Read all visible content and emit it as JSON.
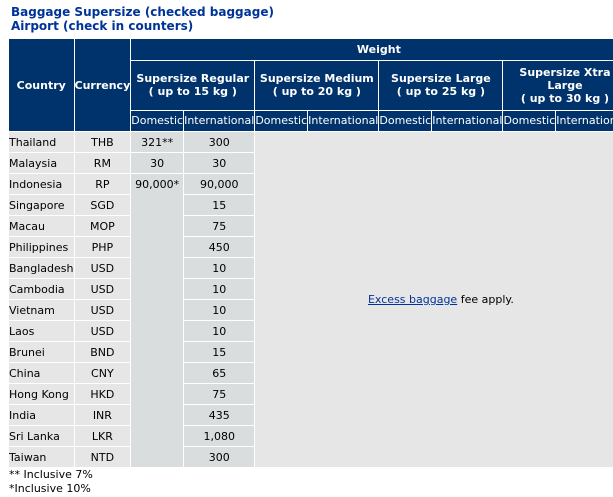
{
  "title": {
    "line1": "Baggage Supersize (checked baggage)",
    "line2": "Airport (check in counters)"
  },
  "table": {
    "weight_label": "Weight",
    "country_label": "Country",
    "currency_label": "Currency",
    "categories": [
      {
        "name": "Supersize Regular",
        "limit": "( up to 15 kg )"
      },
      {
        "name": "Supersize Medium",
        "limit": "( up to 20 kg )"
      },
      {
        "name": "Supersize Large",
        "limit": "( up to 25 kg )"
      },
      {
        "name": "Supersize Xtra Large",
        "limit": "( up to 30 kg )"
      }
    ],
    "sub_domestic": "Domestic",
    "sub_international": "International",
    "rows": [
      {
        "country": "Thailand",
        "currency": "THB",
        "domestic": "321**",
        "international": "300"
      },
      {
        "country": "Malaysia",
        "currency": "RM",
        "domestic": "30",
        "international": "30"
      },
      {
        "country": "Indonesia",
        "currency": "RP",
        "domestic": "90,000*",
        "international": "90,000"
      },
      {
        "country": "Singapore",
        "currency": "SGD",
        "domestic": "",
        "international": "15"
      },
      {
        "country": "Macau",
        "currency": "MOP",
        "domestic": "",
        "international": "75"
      },
      {
        "country": "Philippines",
        "currency": "PHP",
        "domestic": "",
        "international": "450"
      },
      {
        "country": "Bangladesh",
        "currency": "USD",
        "domestic": "",
        "international": "10"
      },
      {
        "country": "Cambodia",
        "currency": "USD",
        "domestic": "",
        "international": "10"
      },
      {
        "country": "Vietnam",
        "currency": "USD",
        "domestic": "",
        "international": "10"
      },
      {
        "country": "Laos",
        "currency": "USD",
        "domestic": "",
        "international": "10"
      },
      {
        "country": "Brunei",
        "currency": "BND",
        "domestic": "",
        "international": "15"
      },
      {
        "country": "China",
        "currency": "CNY",
        "domestic": "",
        "international": "65"
      },
      {
        "country": "Hong Kong",
        "currency": "HKD",
        "domestic": "",
        "international": "75"
      },
      {
        "country": "India",
        "currency": "INR",
        "domestic": "",
        "international": "435"
      },
      {
        "country": "Sri Lanka",
        "currency": "LKR",
        "domestic": "",
        "international": "1,080"
      },
      {
        "country": "Taiwan",
        "currency": "NTD",
        "domestic": "",
        "international": "300"
      }
    ],
    "note_link": "Excess baggage",
    "note_text": " fee apply."
  },
  "footnotes": {
    "double_star": "** Inclusive 7%",
    "single_star": "*Inclusive 10%"
  },
  "colors": {
    "title": "#003399",
    "header_bg": "#00336b",
    "cell_bg": "#e6e6e6",
    "value_bg": "#d9dddd"
  }
}
